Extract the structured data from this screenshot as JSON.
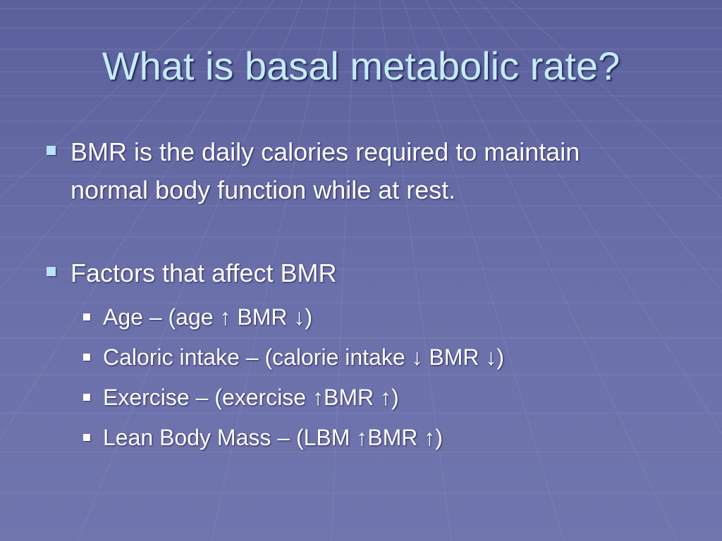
{
  "slide": {
    "title": "What is basal metabolic rate?",
    "bullets": [
      {
        "text": "BMR is the daily calories required to maintain normal body function while at rest.",
        "subbullets": []
      },
      {
        "text": "Factors that affect BMR",
        "subbullets": [
          "Age –  (age ↑ BMR ↓)",
          "Caloric intake – (calorie intake ↓ BMR ↓)",
          "Exercise – (exercise ↑BMR ↑)",
          "Lean Body Mass – (LBM ↑BMR ↑)"
        ]
      }
    ]
  },
  "theme": {
    "background": "#666ba6",
    "title_color": "#c5ecfb",
    "text_color": "#ffffff",
    "bullet_color_level1": "#b9e3f7",
    "bullet_color_level2": "#ffffff"
  }
}
